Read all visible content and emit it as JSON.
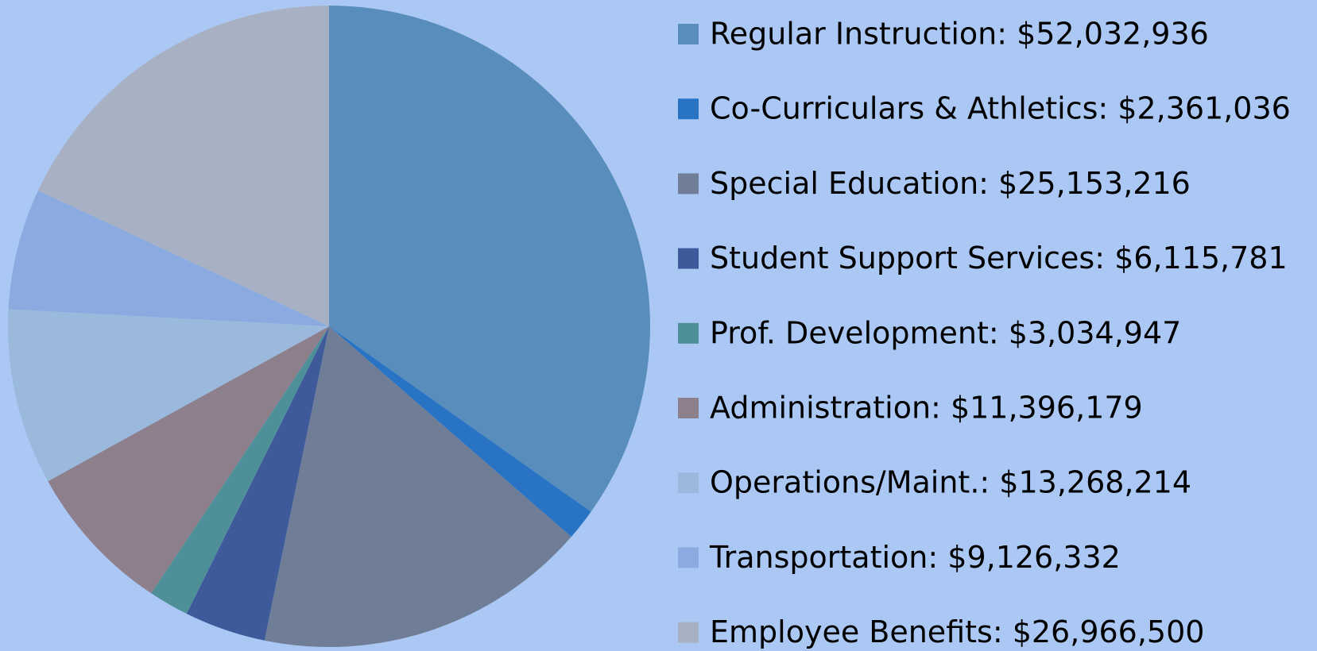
{
  "chart_data": {
    "type": "pie",
    "categories": [
      "Regular Instruction: $52,032,936",
      "Co-Curriculars & Athletics: $2,361,036",
      "Special Education: $25,153,216",
      "Student Support Services: $6,115,781",
      "Prof. Development: $3,034,947",
      "Administration: $11,396,179",
      "Operations/Maint.: $13,268,214",
      "Transportation: $9,126,332",
      "Employee Benefits: $26,966,500"
    ],
    "values": [
      52032936,
      2361036,
      25153216,
      6115781,
      3034947,
      11396179,
      13268214,
      9126332,
      26966500
    ],
    "colors": [
      "#588dbc",
      "#2873c4",
      "#6f7e96",
      "#3f5a9a",
      "#4f8f98",
      "#8d7f8c",
      "#9ab9dc",
      "#8aaae0",
      "#a8b1c3"
    ],
    "legend": "right"
  }
}
